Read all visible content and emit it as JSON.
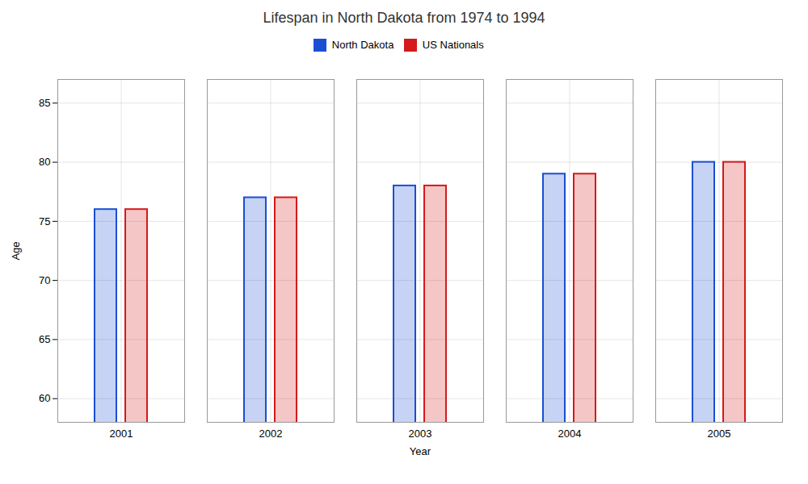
{
  "chart_data": {
    "type": "bar",
    "title": "Lifespan in North Dakota from 1974 to 1994",
    "xlabel": "Year",
    "ylabel": "Age",
    "categories": [
      "2001",
      "2002",
      "2003",
      "2004",
      "2005"
    ],
    "series": [
      {
        "name": "North Dakota",
        "color": "#1a4fd4",
        "values": [
          76,
          77,
          78,
          79,
          80
        ]
      },
      {
        "name": "US Nationals",
        "color": "#d41a1a",
        "values": [
          76,
          77,
          78,
          79,
          80
        ]
      }
    ],
    "ylim": [
      58,
      87
    ],
    "yticks": [
      60,
      65,
      70,
      75,
      80,
      85
    ],
    "grid": true,
    "legend": "top"
  }
}
